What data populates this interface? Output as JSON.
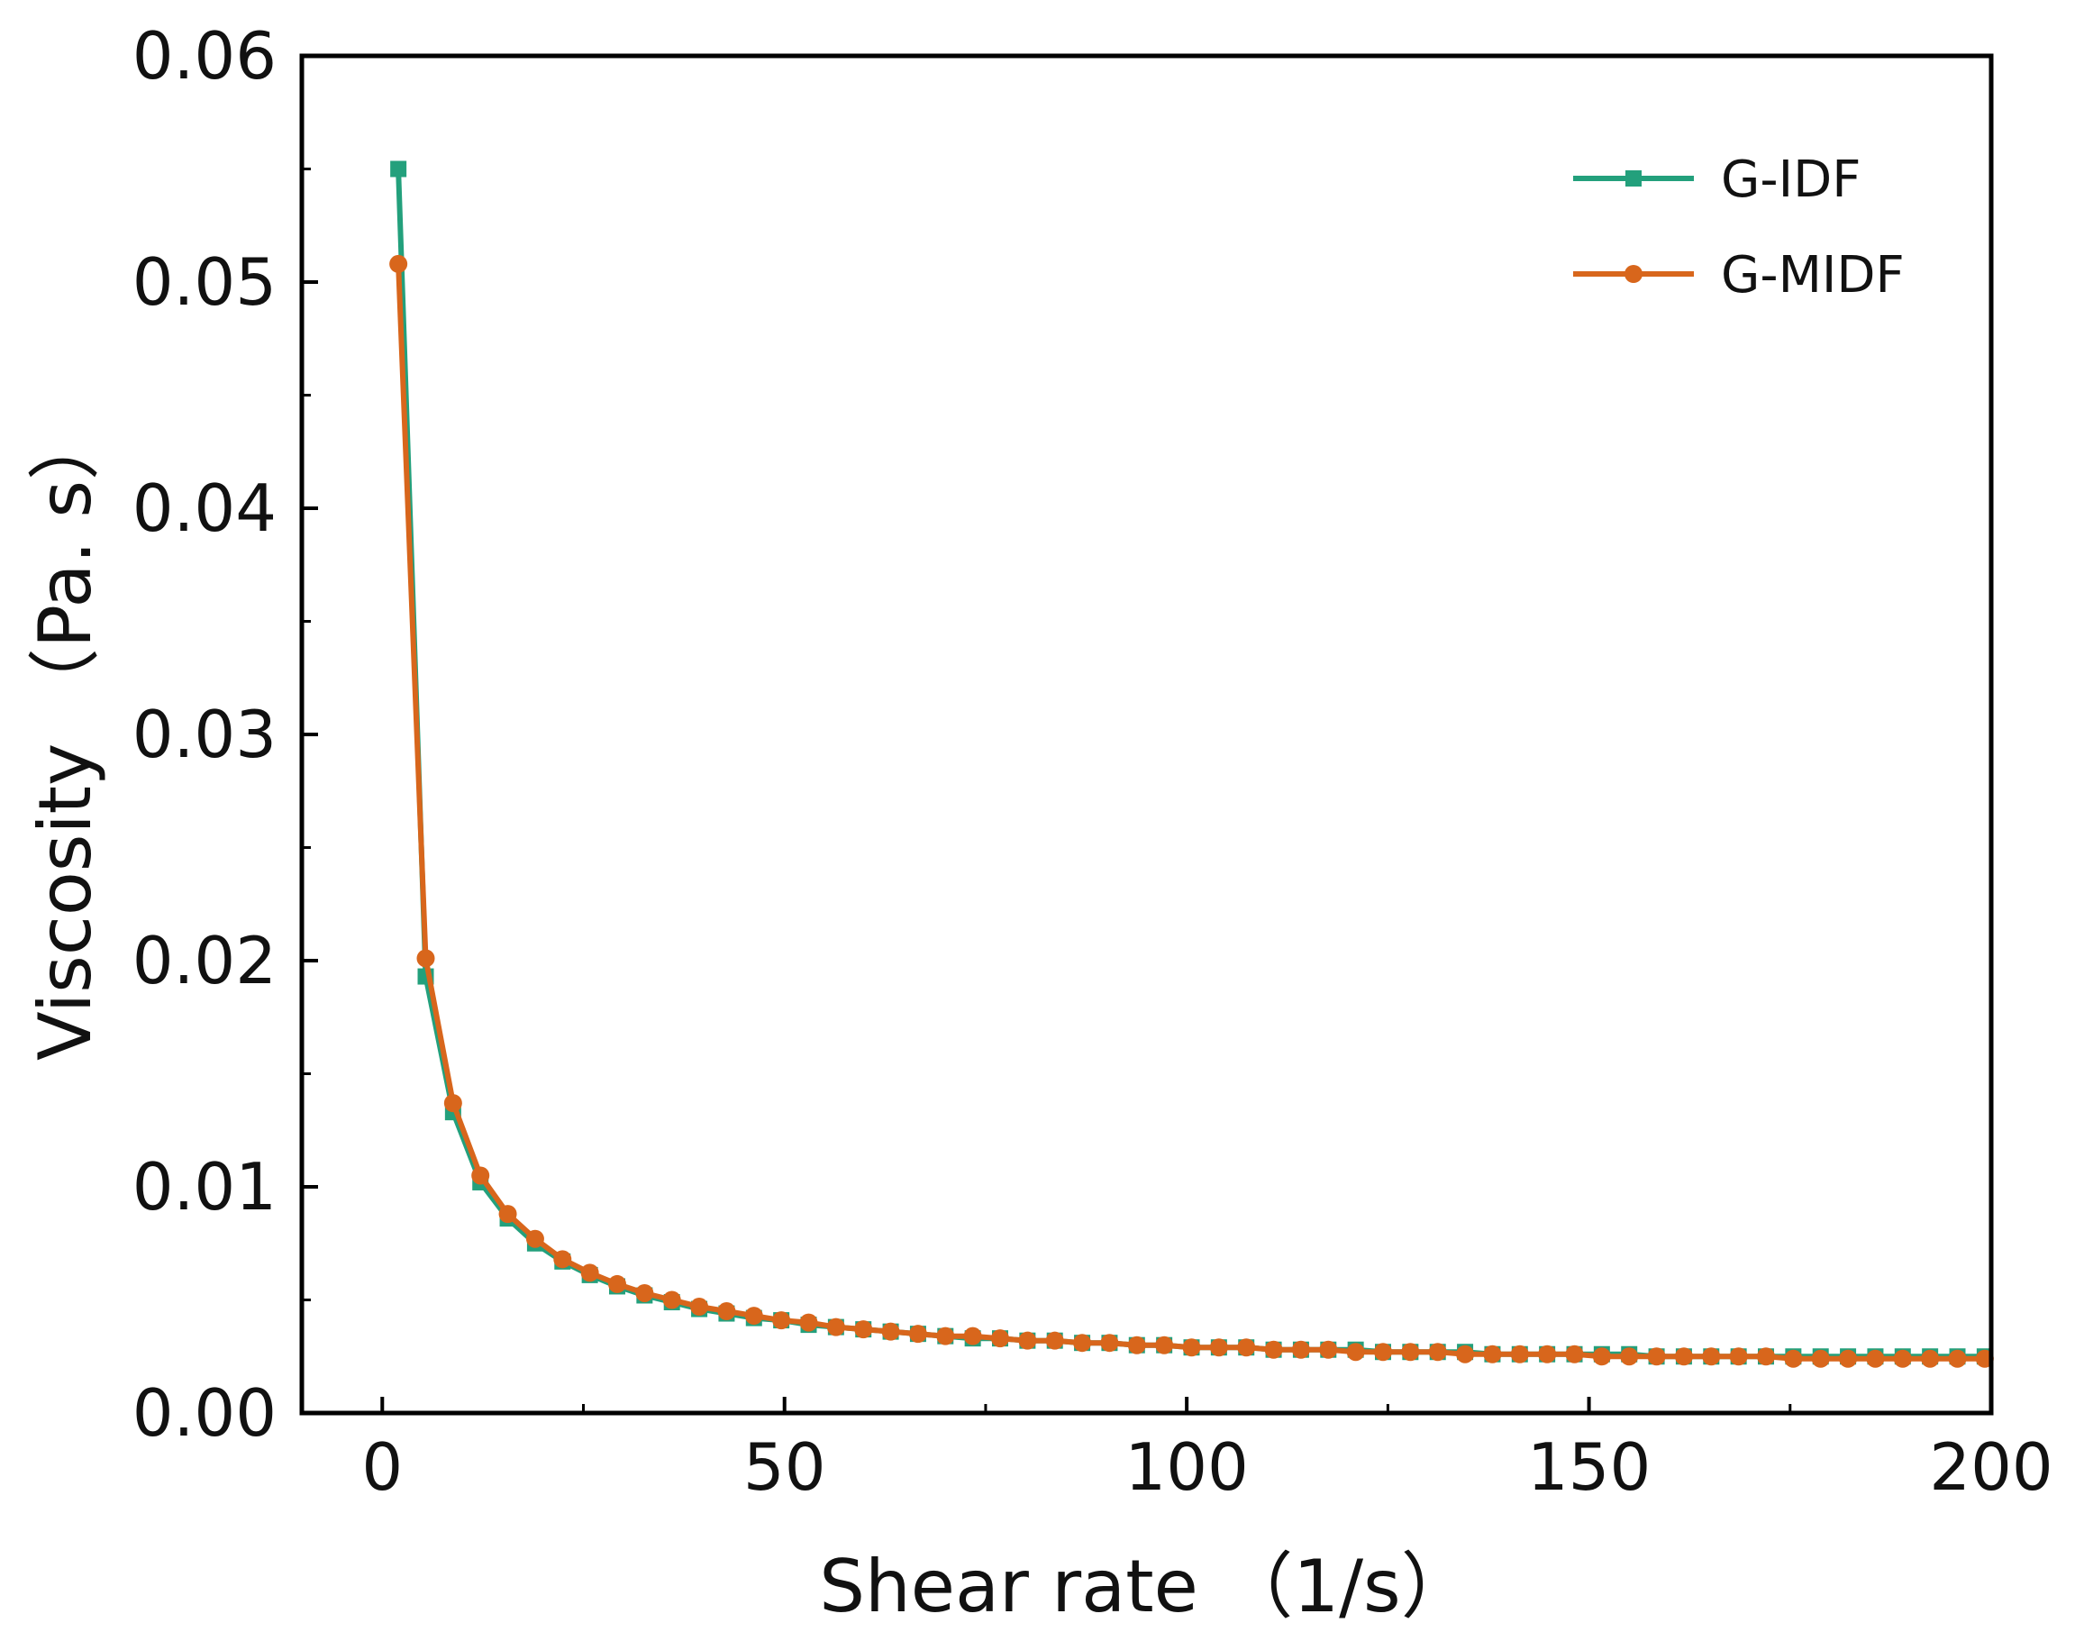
{
  "colors": {
    "g_idf": "#23a07c",
    "g_midf": "#d8661c",
    "axis": "#000000"
  },
  "chart_data": {
    "type": "line",
    "title": "",
    "xlabel": "Shear rate （1/s）",
    "ylabel": "Viscosity （Pa. s）",
    "xlim": [
      -10,
      200
    ],
    "ylim": [
      0,
      0.06
    ],
    "x_ticks": [
      0,
      50,
      100,
      150,
      200
    ],
    "x_tick_labels": [
      "0",
      "50",
      "100",
      "150",
      "200"
    ],
    "y_ticks": [
      0,
      0.01,
      0.02,
      0.03,
      0.04,
      0.05,
      0.06
    ],
    "y_tick_labels": [
      "0.00",
      "0.01",
      "0.02",
      "0.03",
      "0.04",
      "0.05",
      "0.06"
    ],
    "grid": false,
    "legend_position": "top-right",
    "x": [
      2,
      5.4,
      8.8,
      12.2,
      15.6,
      19,
      22.4,
      25.8,
      29.2,
      32.6,
      36,
      39.4,
      42.8,
      46.2,
      49.6,
      53,
      56.4,
      59.8,
      63.2,
      66.6,
      70,
      73.4,
      76.8,
      80.2,
      83.6,
      87,
      90.4,
      93.8,
      97.2,
      100.6,
      104,
      107.4,
      110.8,
      114.2,
      117.6,
      121,
      124.4,
      127.8,
      131.2,
      134.6,
      138,
      141.4,
      144.8,
      148.2,
      151.6,
      155,
      158.4,
      161.8,
      165.2,
      168.6,
      172,
      175.4,
      178.8,
      182.2,
      185.6,
      189,
      192.4,
      195.8,
      199.2
    ],
    "series": [
      {
        "name": "G-IDF",
        "marker": "square",
        "values": [
          0.055,
          0.0193,
          0.0133,
          0.0102,
          0.0086,
          0.0075,
          0.0067,
          0.0061,
          0.0056,
          0.0052,
          0.0049,
          0.0046,
          0.0044,
          0.0042,
          0.0041,
          0.0039,
          0.0038,
          0.0037,
          0.0036,
          0.0035,
          0.0034,
          0.0033,
          0.0033,
          0.0032,
          0.0032,
          0.0031,
          0.0031,
          0.003,
          0.003,
          0.0029,
          0.0029,
          0.0029,
          0.0028,
          0.0028,
          0.0028,
          0.0028,
          0.0027,
          0.0027,
          0.0027,
          0.0027,
          0.0026,
          0.0026,
          0.0026,
          0.0026,
          0.0026,
          0.0026,
          0.0025,
          0.0025,
          0.0025,
          0.0025,
          0.0025,
          0.0025,
          0.0025,
          0.0025,
          0.0025,
          0.0025,
          0.0025,
          0.0025,
          0.0025
        ]
      },
      {
        "name": "G-MIDF",
        "marker": "circle",
        "values": [
          0.0508,
          0.0201,
          0.0137,
          0.0105,
          0.0088,
          0.0077,
          0.0068,
          0.0062,
          0.0057,
          0.0053,
          0.005,
          0.0047,
          0.0045,
          0.0043,
          0.0041,
          0.004,
          0.0038,
          0.0037,
          0.0036,
          0.0035,
          0.0034,
          0.0034,
          0.0033,
          0.0032,
          0.0032,
          0.0031,
          0.0031,
          0.003,
          0.003,
          0.0029,
          0.0029,
          0.0029,
          0.0028,
          0.0028,
          0.0028,
          0.0027,
          0.0027,
          0.0027,
          0.0027,
          0.0026,
          0.0026,
          0.0026,
          0.0026,
          0.0026,
          0.0025,
          0.0025,
          0.0025,
          0.0025,
          0.0025,
          0.0025,
          0.0025,
          0.0024,
          0.0024,
          0.0024,
          0.0024,
          0.0024,
          0.0024,
          0.0024,
          0.0024
        ]
      }
    ]
  }
}
